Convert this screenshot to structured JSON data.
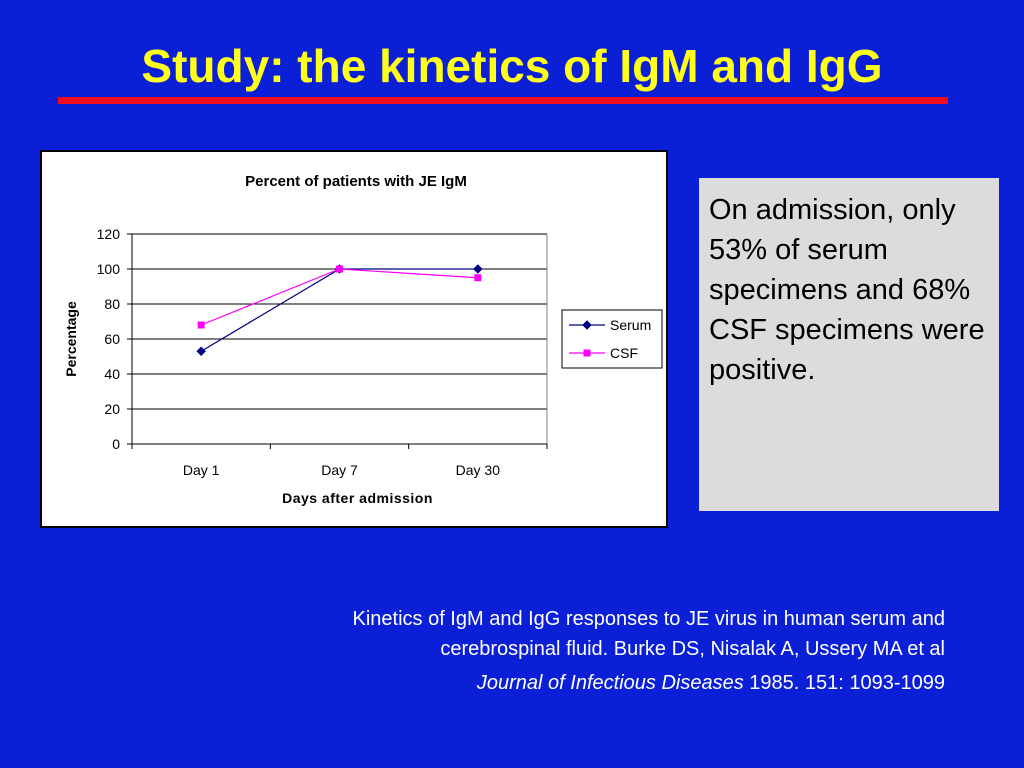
{
  "slide": {
    "title": "Study: the kinetics of IgM and IgG"
  },
  "callout": {
    "text": "On admission, only 53% of serum specimens and 68% CSF specimens were positive."
  },
  "reference": {
    "line1": "Kinetics of IgM and IgG responses to JE virus in human serum and",
    "line2": "cerebrospinal fluid. Burke DS, Nisalak A, Ussery MA et al",
    "journal": "Journal of Infectious Diseases",
    "citation": "1985. 151: 1093-1099"
  },
  "colors": {
    "background": "#0a1fd6",
    "title": "#ffff1a",
    "rule": "#f00c1e",
    "callout_bg": "#dcdcdc"
  },
  "chart_data": {
    "type": "line",
    "title": "Percent of patients with JE IgM",
    "xlabel": "Days after admission",
    "ylabel": "Percentage",
    "categories": [
      "Day 1",
      "Day 7",
      "Day 30"
    ],
    "ylim": [
      0,
      120
    ],
    "yticks": [
      0,
      20,
      40,
      60,
      80,
      100,
      120
    ],
    "grid": true,
    "legend": "right",
    "series": [
      {
        "name": "Serum",
        "values": [
          53,
          100,
          100
        ],
        "color": "#000080",
        "marker": "diamond"
      },
      {
        "name": "CSF",
        "values": [
          68,
          100,
          95
        ],
        "color": "#ff00ff",
        "marker": "square"
      }
    ]
  }
}
